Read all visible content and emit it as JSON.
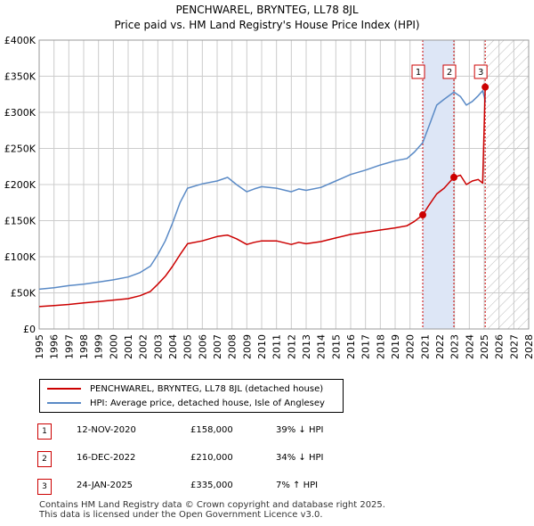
{
  "title_line1": "PENCHWAREL, BRYNTEG, LL78 8JL",
  "title_line2": "Price paid vs. HM Land Registry's House Price Index (HPI)",
  "chart_data": {
    "type": "line",
    "title": "PENCHWAREL, BRYNTEG, LL78 8JL — Price paid vs. HM Land Registry's House Price Index (HPI)",
    "xlim": [
      1995,
      2028
    ],
    "ylim": [
      0,
      400000
    ],
    "y_ticks": [
      0,
      50000,
      100000,
      150000,
      200000,
      250000,
      300000,
      350000,
      400000
    ],
    "y_tick_labels": [
      "£0",
      "£50K",
      "£100K",
      "£150K",
      "£200K",
      "£250K",
      "£300K",
      "£350K",
      "£400K"
    ],
    "x_ticks": [
      "1995",
      "1996",
      "1997",
      "1998",
      "1999",
      "2000",
      "2001",
      "2002",
      "2003",
      "2004",
      "2005",
      "2006",
      "2007",
      "2008",
      "2009",
      "2010",
      "2011",
      "2012",
      "2013",
      "2014",
      "2015",
      "2016",
      "2017",
      "2018",
      "2019",
      "2020",
      "2021",
      "2022",
      "2023",
      "2024",
      "2025",
      "2026",
      "2027",
      "2028"
    ],
    "grid": true,
    "legend_position": "below",
    "series": [
      {
        "name": "PENCHWAREL, BRYNTEG, LL78 8JL (detached house)",
        "color": "#cc0000",
        "x": [
          1995.0,
          1996.0,
          1997.0,
          1998.0,
          1999.0,
          2000.0,
          2001.0,
          2001.8,
          2002.5,
          2003.0,
          2003.5,
          2004.0,
          2004.5,
          2005.0,
          2006.0,
          2007.0,
          2007.7,
          2008.3,
          2009.0,
          2009.5,
          2010.0,
          2011.0,
          2012.0,
          2012.5,
          2013.0,
          2014.0,
          2015.0,
          2016.0,
          2017.0,
          2018.0,
          2019.0,
          2019.8,
          2020.3,
          2020.86,
          2021.3,
          2021.8,
          2022.3,
          2022.96,
          2023.4,
          2023.8,
          2024.2,
          2024.6,
          2024.9,
          2025.07
        ],
        "y": [
          31000,
          32500,
          34000,
          36000,
          38000,
          40000,
          42000,
          46000,
          52000,
          62000,
          73000,
          87000,
          103000,
          118000,
          122000,
          128000,
          130000,
          125000,
          117000,
          120000,
          122000,
          122000,
          117000,
          120000,
          118000,
          121000,
          126000,
          131000,
          134000,
          137000,
          140000,
          143000,
          149000,
          158000,
          172000,
          187000,
          195000,
          210000,
          213000,
          200000,
          205000,
          207000,
          202000,
          335000
        ]
      },
      {
        "name": "HPI: Average price, detached house, Isle of Anglesey",
        "color": "#5a8ac6",
        "x": [
          1995.0,
          1996.0,
          1997.0,
          1998.0,
          1999.0,
          2000.0,
          2001.0,
          2001.8,
          2002.5,
          2003.0,
          2003.5,
          2004.0,
          2004.5,
          2005.0,
          2006.0,
          2007.0,
          2007.7,
          2008.3,
          2009.0,
          2009.5,
          2010.0,
          2011.0,
          2012.0,
          2012.5,
          2013.0,
          2014.0,
          2015.0,
          2016.0,
          2017.0,
          2018.0,
          2019.0,
          2019.8,
          2020.3,
          2020.86,
          2021.3,
          2021.8,
          2022.3,
          2022.96,
          2023.4,
          2023.8,
          2024.2,
          2024.6,
          2024.9,
          2025.1
        ],
        "y": [
          55000,
          57000,
          60000,
          62000,
          65000,
          68000,
          72000,
          78000,
          87000,
          103000,
          122000,
          147000,
          175000,
          195000,
          201000,
          205000,
          210000,
          200000,
          190000,
          194000,
          197000,
          195000,
          190000,
          194000,
          192000,
          196000,
          205000,
          214000,
          220000,
          227000,
          233000,
          236000,
          245000,
          258000,
          282000,
          310000,
          318000,
          328000,
          322000,
          310000,
          315000,
          323000,
          330000,
          314000
        ]
      }
    ],
    "transactions": [
      {
        "id": "1",
        "date": "12-NOV-2020",
        "x": 2020.86,
        "price": 158000,
        "price_label": "£158,000",
        "hpi": "39% ↓ HPI"
      },
      {
        "id": "2",
        "date": "16-DEC-2022",
        "x": 2022.96,
        "price": 210000,
        "price_label": "£210,000",
        "hpi": "34% ↓ HPI"
      },
      {
        "id": "3",
        "date": "24-JAN-2025",
        "x": 2025.07,
        "price": 335000,
        "price_label": "£335,000",
        "hpi": "7% ↑ HPI"
      }
    ],
    "shaded_ranges": [
      [
        2020.86,
        2022.96
      ]
    ],
    "future_hatch_start": 2025.07
  },
  "footer_line1": "Contains HM Land Registry data © Crown copyright and database right 2025.",
  "footer_line2": "This data is licensed under the Open Government Licence v3.0.",
  "colors": {
    "price": "#cc0000",
    "hpi": "#5a8ac6",
    "grid": "#cccccc",
    "shade": "#dde6f6"
  }
}
